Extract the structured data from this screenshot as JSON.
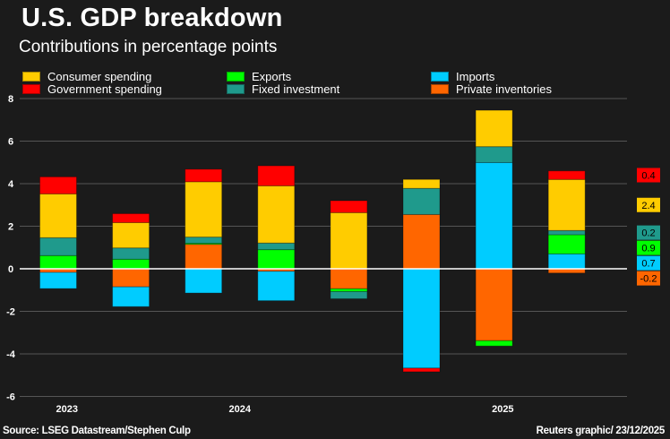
{
  "title": "U.S. GDP breakdown",
  "subtitle": "Contributions in percentage points",
  "footer": {
    "source": "Source: LSEG Datastream/Stephen Culp",
    "credit": "Reuters graphic/ 23/12/2025"
  },
  "chart_data": {
    "type": "bar",
    "stacked": true,
    "title": "U.S. GDP breakdown",
    "subtitle": "Contributions in percentage points",
    "ylim": [
      -6,
      8
    ],
    "yticks": [
      -6,
      -4,
      -2,
      0,
      2,
      4,
      6,
      8
    ],
    "grid": true,
    "legend_placement": "top",
    "num_categories": 8,
    "xtick_labels": [
      {
        "label": "2023",
        "at": 0.12
      },
      {
        "label": "2024",
        "at": 2.5
      },
      {
        "label": "2025",
        "at": 6.12
      }
    ],
    "series": [
      {
        "name": "Private inventories",
        "color": "#ff6600",
        "values": [
          -0.17,
          -0.85,
          1.15,
          -0.12,
          -0.94,
          2.55,
          -3.38,
          -0.2
        ]
      },
      {
        "name": "Imports",
        "color": "#00ccff",
        "values": [
          -0.76,
          -0.93,
          -1.14,
          -1.38,
          0.0,
          -4.67,
          4.99,
          0.7
        ]
      },
      {
        "name": "Exports",
        "color": "#00ff00",
        "values": [
          0.62,
          0.45,
          0.05,
          0.9,
          -0.13,
          0.0,
          -0.25,
          0.9
        ]
      },
      {
        "name": "Fixed investment",
        "color": "#1f9a8c",
        "values": [
          0.84,
          0.53,
          0.29,
          0.31,
          -0.34,
          1.23,
          0.75,
          0.2
        ]
      },
      {
        "name": "Consumer spending",
        "color": "#ffcc00",
        "values": [
          2.06,
          1.19,
          2.6,
          2.69,
          2.64,
          0.42,
          1.71,
          2.4
        ]
      },
      {
        "name": "Government spending",
        "color": "#ff0000",
        "values": [
          0.8,
          0.42,
          0.59,
          0.94,
          0.56,
          -0.17,
          0.0,
          0.4
        ]
      }
    ],
    "latest_labels": [
      {
        "series": "Government spending",
        "text": "0.4"
      },
      {
        "series": "Consumer spending",
        "text": "2.4"
      },
      {
        "series": "Fixed investment",
        "text": "0.2"
      },
      {
        "series": "Exports",
        "text": "0.9"
      },
      {
        "series": "Imports",
        "text": "0.7"
      },
      {
        "series": "Private inventories",
        "text": "-0.2"
      }
    ],
    "legend": [
      {
        "name": "Consumer spending",
        "color": "#ffcc00"
      },
      {
        "name": "Government spending",
        "color": "#ff0000"
      },
      {
        "name": "Exports",
        "color": "#00ff00"
      },
      {
        "name": "Fixed investment",
        "color": "#1f9a8c"
      },
      {
        "name": "Imports",
        "color": "#00ccff"
      },
      {
        "name": "Private inventories",
        "color": "#ff6600"
      }
    ]
  }
}
